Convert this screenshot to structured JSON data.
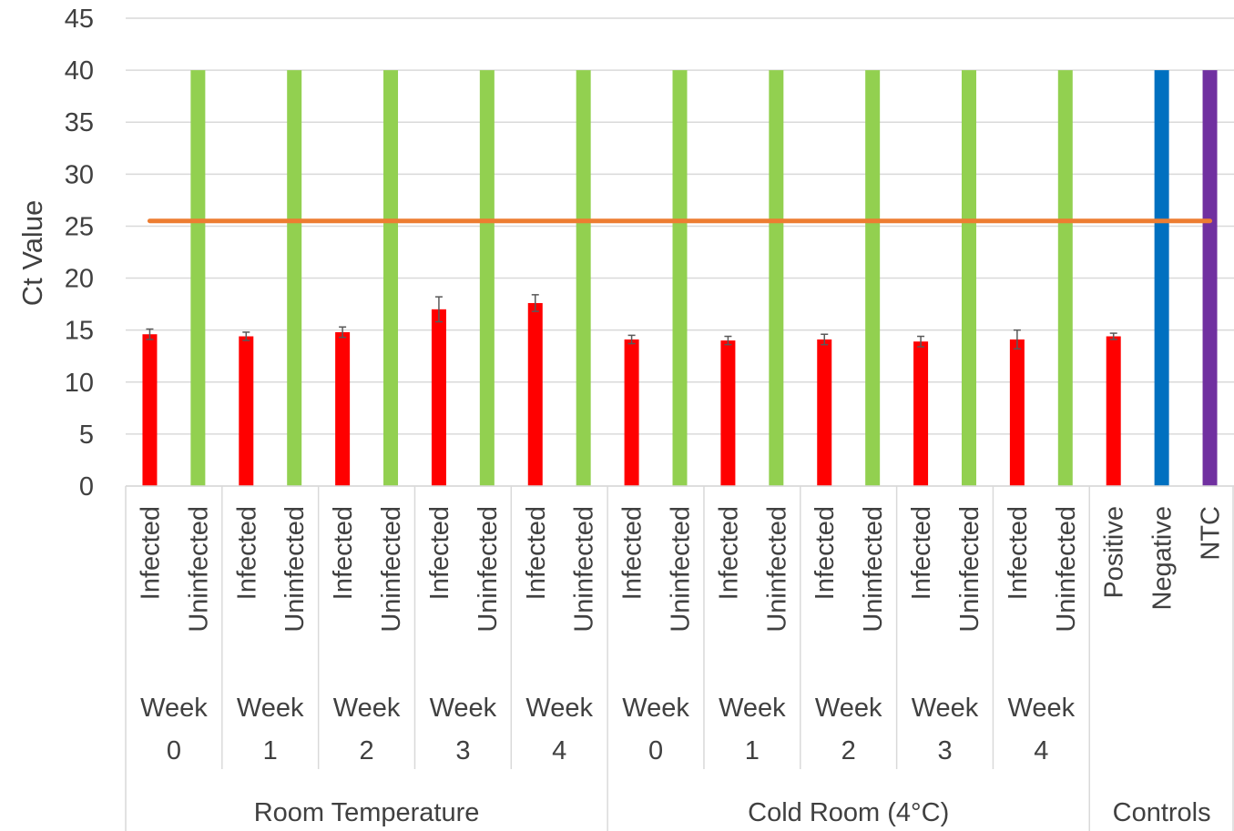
{
  "chart_data": {
    "type": "bar",
    "ylabel": "Ct Value",
    "xlabel": "",
    "ylim": [
      0,
      45
    ],
    "ytick_step": 5,
    "grid": true,
    "legend": "none",
    "colors": {
      "infected": "#ff0000",
      "uninfected": "#92d050",
      "positive": "#ff0000",
      "negative": "#0070c0",
      "ntc": "#7030a0",
      "threshold": "#ed7d31",
      "grid": "#d9d9d9",
      "error_bar": "#595959"
    },
    "threshold": 25.5,
    "groups": [
      {
        "label": "Room Temperature",
        "subgroups": [
          {
            "label": [
              "Week",
              "0"
            ],
            "bars": [
              {
                "label": "Infected",
                "value": 14.6,
                "error": 0.5,
                "color_key": "infected"
              },
              {
                "label": "Uninfected",
                "value": 40,
                "error": 0,
                "color_key": "uninfected"
              }
            ]
          },
          {
            "label": [
              "Week",
              "1"
            ],
            "bars": [
              {
                "label": "Infected",
                "value": 14.4,
                "error": 0.4,
                "color_key": "infected"
              },
              {
                "label": "Uninfected",
                "value": 40,
                "error": 0,
                "color_key": "uninfected"
              }
            ]
          },
          {
            "label": [
              "Week",
              "2"
            ],
            "bars": [
              {
                "label": "Infected",
                "value": 14.8,
                "error": 0.5,
                "color_key": "infected"
              },
              {
                "label": "Uninfected",
                "value": 40,
                "error": 0,
                "color_key": "uninfected"
              }
            ]
          },
          {
            "label": [
              "Week",
              "3"
            ],
            "bars": [
              {
                "label": "Infected",
                "value": 17.0,
                "error": 1.2,
                "color_key": "infected"
              },
              {
                "label": "Uninfected",
                "value": 40,
                "error": 0,
                "color_key": "uninfected"
              }
            ]
          },
          {
            "label": [
              "Week",
              "4"
            ],
            "bars": [
              {
                "label": "Infected",
                "value": 17.6,
                "error": 0.8,
                "color_key": "infected"
              },
              {
                "label": "Uninfected",
                "value": 40,
                "error": 0,
                "color_key": "uninfected"
              }
            ]
          }
        ]
      },
      {
        "label": "Cold Room (4°C)",
        "subgroups": [
          {
            "label": [
              "Week",
              "0"
            ],
            "bars": [
              {
                "label": "Infected",
                "value": 14.1,
                "error": 0.4,
                "color_key": "infected"
              },
              {
                "label": "Uninfected",
                "value": 40,
                "error": 0,
                "color_key": "uninfected"
              }
            ]
          },
          {
            "label": [
              "Week",
              "1"
            ],
            "bars": [
              {
                "label": "Infected",
                "value": 14.0,
                "error": 0.4,
                "color_key": "infected"
              },
              {
                "label": "Uninfected",
                "value": 40,
                "error": 0,
                "color_key": "uninfected"
              }
            ]
          },
          {
            "label": [
              "Week",
              "2"
            ],
            "bars": [
              {
                "label": "Infected",
                "value": 14.1,
                "error": 0.5,
                "color_key": "infected"
              },
              {
                "label": "Uninfected",
                "value": 40,
                "error": 0,
                "color_key": "uninfected"
              }
            ]
          },
          {
            "label": [
              "Week",
              "3"
            ],
            "bars": [
              {
                "label": "Infected",
                "value": 13.9,
                "error": 0.5,
                "color_key": "infected"
              },
              {
                "label": "Uninfected",
                "value": 40,
                "error": 0,
                "color_key": "uninfected"
              }
            ]
          },
          {
            "label": [
              "Week",
              "4"
            ],
            "bars": [
              {
                "label": "Infected",
                "value": 14.1,
                "error": 0.9,
                "color_key": "infected"
              },
              {
                "label": "Uninfected",
                "value": 40,
                "error": 0,
                "color_key": "uninfected"
              }
            ]
          }
        ]
      },
      {
        "label": "Controls",
        "subgroups": [
          {
            "label": [],
            "bars": [
              {
                "label": "Positive",
                "value": 14.4,
                "error": 0.3,
                "color_key": "positive"
              },
              {
                "label": "Negative",
                "value": 40,
                "error": 0,
                "color_key": "negative"
              },
              {
                "label": "NTC",
                "value": 40,
                "error": 0,
                "color_key": "ntc"
              }
            ]
          }
        ]
      }
    ]
  }
}
